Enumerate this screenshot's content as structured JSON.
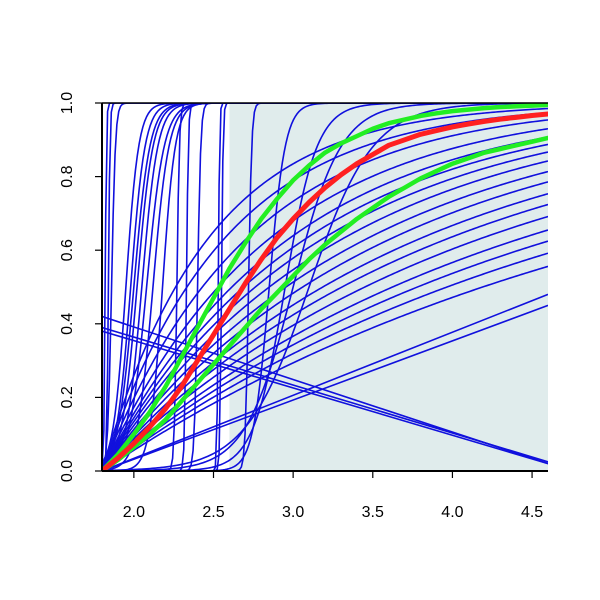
{
  "chart_data": {
    "type": "line",
    "title": "",
    "xlabel": "",
    "ylabel": "",
    "xlim": [
      1.8,
      4.6
    ],
    "ylim": [
      0.0,
      1.0
    ],
    "x_ticks": [
      2.0,
      2.5,
      3.0,
      3.5,
      4.0,
      4.5
    ],
    "x_tick_labels": [
      "2.0",
      "2.5",
      "3.0",
      "3.5",
      "4.0",
      "4.5"
    ],
    "y_ticks": [
      0.0,
      0.2,
      0.4,
      0.6,
      0.8,
      1.0
    ],
    "y_tick_labels": [
      "0.0",
      "0.2",
      "0.4",
      "0.6",
      "0.8",
      "1.0"
    ],
    "grid": false,
    "legend": "none",
    "shaded_region": {
      "x": [
        2.6,
        4.6
      ],
      "color": "#e0ecec"
    },
    "colors": {
      "sample": "#1010dd",
      "median": "#ff2020",
      "band": "#22ee22",
      "axis": "#000000"
    },
    "x": [
      1.8,
      1.9,
      2.0,
      2.1,
      2.2,
      2.3,
      2.4,
      2.5,
      2.6,
      2.7,
      2.8,
      2.9,
      3.0,
      3.1,
      3.2,
      3.3,
      3.4,
      3.5,
      3.6,
      3.7,
      3.8,
      3.9,
      4.0,
      4.1,
      4.2,
      4.3,
      4.4,
      4.5,
      4.6
    ],
    "highlight_series": [
      {
        "role": "median",
        "values": [
          0.0,
          0.035,
          0.075,
          0.12,
          0.17,
          0.23,
          0.3,
          0.37,
          0.44,
          0.51,
          0.575,
          0.635,
          0.685,
          0.73,
          0.77,
          0.805,
          0.835,
          0.86,
          0.885,
          0.9,
          0.915,
          0.925,
          0.935,
          0.943,
          0.95,
          0.956,
          0.961,
          0.966,
          0.97
        ]
      },
      {
        "role": "upper",
        "values": [
          0.0,
          0.045,
          0.1,
          0.16,
          0.23,
          0.31,
          0.39,
          0.47,
          0.55,
          0.62,
          0.685,
          0.74,
          0.79,
          0.83,
          0.865,
          0.89,
          0.91,
          0.93,
          0.945,
          0.955,
          0.965,
          0.972,
          0.978,
          0.982,
          0.986,
          0.989,
          0.991,
          0.993,
          0.995
        ]
      },
      {
        "role": "lower",
        "values": [
          0.0,
          0.03,
          0.065,
          0.1,
          0.14,
          0.19,
          0.24,
          0.29,
          0.34,
          0.39,
          0.44,
          0.485,
          0.53,
          0.575,
          0.615,
          0.65,
          0.685,
          0.715,
          0.745,
          0.77,
          0.795,
          0.815,
          0.835,
          0.85,
          0.865,
          0.875,
          0.885,
          0.895,
          0.905
        ]
      }
    ],
    "sample_series": [
      {
        "kind": "logistic",
        "mid": 1.82,
        "scale": 0.004
      },
      {
        "kind": "logistic",
        "mid": 1.84,
        "scale": 0.005
      },
      {
        "kind": "logistic",
        "mid": 1.86,
        "scale": 0.012
      },
      {
        "kind": "logistic",
        "mid": 1.95,
        "scale": 0.04
      },
      {
        "kind": "logistic",
        "mid": 1.98,
        "scale": 0.045
      },
      {
        "kind": "logistic",
        "mid": 2.0,
        "scale": 0.05
      },
      {
        "kind": "logistic",
        "mid": 2.02,
        "scale": 0.05
      },
      {
        "kind": "logistic",
        "mid": 2.05,
        "scale": 0.05
      },
      {
        "kind": "logistic",
        "mid": 2.08,
        "scale": 0.055
      },
      {
        "kind": "logistic",
        "mid": 2.12,
        "scale": 0.05
      },
      {
        "kind": "logistic",
        "mid": 2.18,
        "scale": 0.04
      },
      {
        "kind": "logistic",
        "mid": 2.27,
        "scale": 0.008
      },
      {
        "kind": "logistic",
        "mid": 2.33,
        "scale": 0.006
      },
      {
        "kind": "logistic",
        "mid": 2.4,
        "scale": 0.01
      },
      {
        "kind": "logistic",
        "mid": 2.53,
        "scale": 0.004
      },
      {
        "kind": "logistic",
        "mid": 2.55,
        "scale": 0.005
      },
      {
        "kind": "logistic",
        "mid": 2.72,
        "scale": 0.01
      },
      {
        "kind": "logistic",
        "mid": 2.85,
        "scale": 0.05
      },
      {
        "kind": "logistic",
        "mid": 2.95,
        "scale": 0.1
      },
      {
        "kind": "logistic",
        "mid": 3.0,
        "scale": 0.15
      },
      {
        "kind": "logistic",
        "mid": 3.1,
        "scale": 0.2
      },
      {
        "kind": "saturating",
        "rate": 1.5
      },
      {
        "kind": "saturating",
        "rate": 1.3
      },
      {
        "kind": "saturating",
        "rate": 1.1
      },
      {
        "kind": "saturating",
        "rate": 0.95
      },
      {
        "kind": "saturating",
        "rate": 0.85
      },
      {
        "kind": "saturating",
        "rate": 0.78
      },
      {
        "kind": "saturating",
        "rate": 0.72
      },
      {
        "kind": "saturating",
        "rate": 0.66
      },
      {
        "kind": "saturating",
        "rate": 0.6
      },
      {
        "kind": "saturating",
        "rate": 0.55
      },
      {
        "kind": "saturating",
        "rate": 0.5
      },
      {
        "kind": "saturating",
        "rate": 0.46
      },
      {
        "kind": "saturating",
        "rate": 0.42
      },
      {
        "kind": "saturating",
        "rate": 0.38
      },
      {
        "kind": "saturating",
        "rate": 0.35
      },
      {
        "kind": "saturating",
        "rate": 0.32
      },
      {
        "kind": "saturating",
        "rate": 0.29
      },
      {
        "kind": "linear",
        "x0": 1.8,
        "y0": 0.0,
        "x1": 4.6,
        "y1": 0.48
      },
      {
        "kind": "linear",
        "x0": 1.8,
        "y0": 0.0,
        "x1": 4.6,
        "y1": 0.45
      },
      {
        "kind": "linear",
        "x0": 1.8,
        "y0": 0.42,
        "x1": 4.6,
        "y1": 0.02
      },
      {
        "kind": "linear",
        "x0": 1.8,
        "y0": 0.38,
        "x1": 4.6,
        "y1": 0.02
      },
      {
        "kind": "linear",
        "x0": 1.8,
        "y0": 0.39,
        "x1": 4.6,
        "y1": 0.025
      }
    ]
  }
}
